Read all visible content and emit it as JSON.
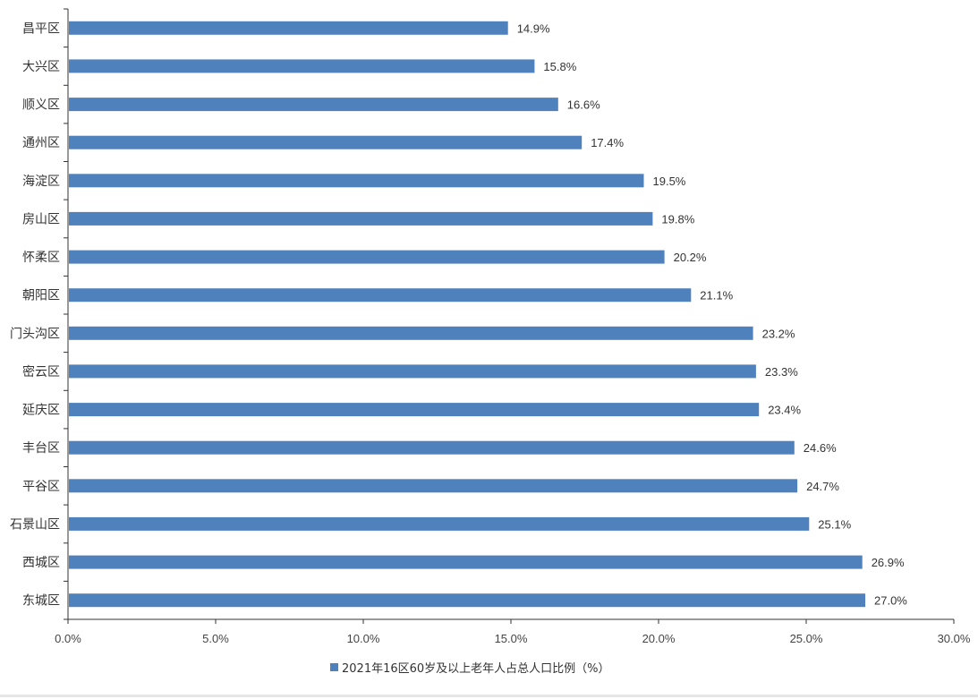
{
  "chart_data": {
    "type": "bar",
    "orientation": "horizontal",
    "categories": [
      "昌平区",
      "大兴区",
      "顺义区",
      "通州区",
      "海淀区",
      "房山区",
      "怀柔区",
      "朝阳区",
      "门头沟区",
      "密云区",
      "延庆区",
      "丰台区",
      "平谷区",
      "石景山区",
      "西城区",
      "东城区"
    ],
    "series": [
      {
        "name": "2021年16区60岁及以上老年人占总人口比例（%）",
        "values": [
          14.9,
          15.8,
          16.6,
          17.4,
          19.5,
          19.8,
          20.2,
          21.1,
          23.2,
          23.3,
          23.4,
          24.6,
          24.7,
          25.1,
          26.9,
          27.0
        ],
        "data_labels": [
          "14.9%",
          "15.8%",
          "16.6%",
          "17.4%",
          "19.5%",
          "19.8%",
          "20.2%",
          "21.1%",
          "23.2%",
          "23.3%",
          "23.4%",
          "24.6%",
          "24.7%",
          "25.1%",
          "26.9%",
          "27.0%"
        ]
      }
    ],
    "xlim": [
      0,
      30
    ],
    "x_ticks": [
      0,
      5,
      10,
      15,
      20,
      25,
      30
    ],
    "x_tick_labels": [
      "0.0%",
      "5.0%",
      "10.0%",
      "15.0%",
      "20.0%",
      "25.0%",
      "30.0%"
    ],
    "title": "",
    "xlabel": "",
    "ylabel": "",
    "grid": false,
    "legend_position": "bottom",
    "colors": {
      "bar": "#4f81bd",
      "axis": "#333333",
      "text": "#333333"
    }
  }
}
